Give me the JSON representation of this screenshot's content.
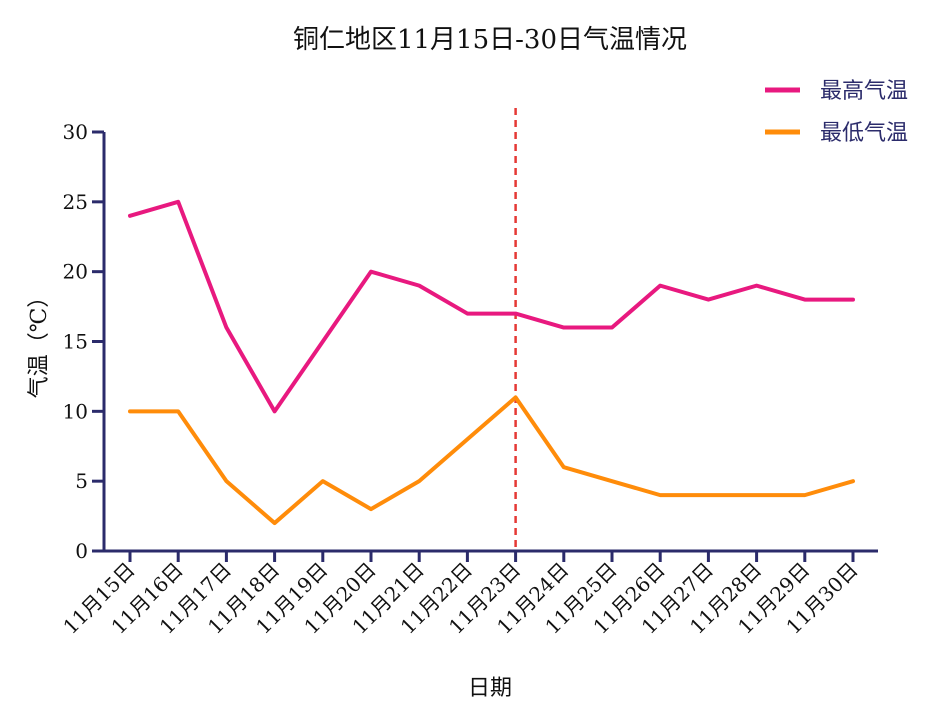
{
  "chart_data": {
    "type": "line",
    "title": "铜仁地区11月15日-30日气温情况",
    "xlabel": "日期",
    "ylabel": "气温（℃）",
    "ylim": [
      0,
      30
    ],
    "yticks": [
      0,
      5,
      10,
      15,
      20,
      25,
      30
    ],
    "categories": [
      "11月15日",
      "11月16日",
      "11月17日",
      "11月18日",
      "11月19日",
      "11月20日",
      "11月21日",
      "11月22日",
      "11月23日",
      "11月24日",
      "11月25日",
      "11月26日",
      "11月27日",
      "11月28日",
      "11月29日",
      "11月30日"
    ],
    "series": [
      {
        "name": "最高气温",
        "color": "#e8197f",
        "values": [
          24,
          25,
          16,
          10,
          15,
          20,
          19,
          17,
          17,
          16,
          16,
          19,
          18,
          19,
          18,
          18
        ]
      },
      {
        "name": "最低气温",
        "color": "#ff8c0a",
        "values": [
          10,
          10,
          5,
          2,
          5,
          3,
          5,
          8,
          11,
          6,
          5,
          4,
          4,
          4,
          4,
          5
        ]
      }
    ],
    "reference_line": {
      "category": "11月23日",
      "color": "#e53935",
      "style": "dashed"
    },
    "axis_color": "#2b2b6b",
    "grid": false,
    "legend_position": "top-right"
  }
}
